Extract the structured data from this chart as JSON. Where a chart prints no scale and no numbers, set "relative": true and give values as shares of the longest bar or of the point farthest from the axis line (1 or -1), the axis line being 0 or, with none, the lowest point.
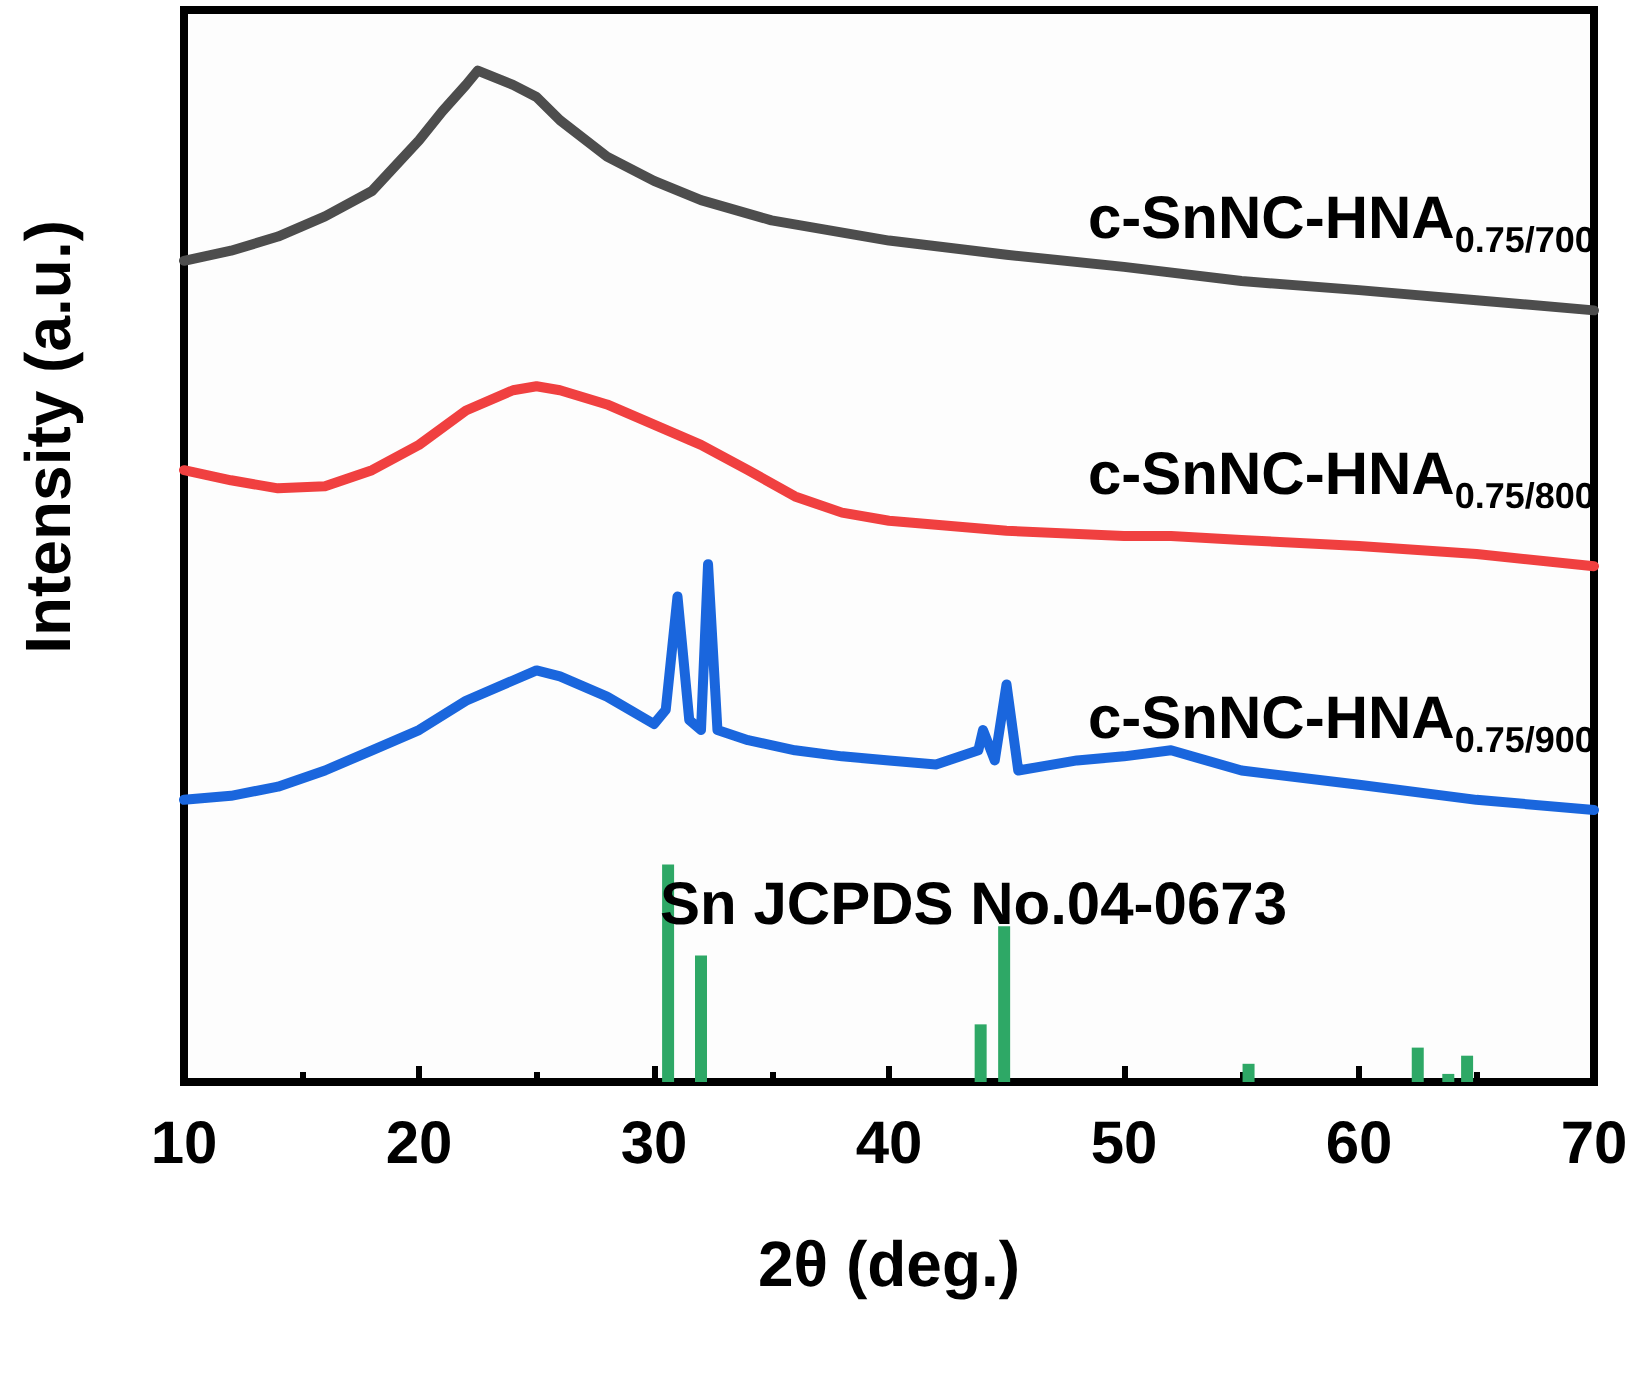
{
  "chart_data": {
    "type": "line",
    "relative": true,
    "xlabel": "2θ (deg.)",
    "ylabel": "Intensity (a.u.)",
    "xlim": [
      10,
      70
    ],
    "xticks": [
      10,
      20,
      30,
      40,
      50,
      60,
      70
    ],
    "tick_labels": "x",
    "grid": false,
    "legend": false,
    "marker": "none",
    "line_style": "solid",
    "series": [
      {
        "name": "c-SnNC-HNA$_{0.75/700}$",
        "color": "#4d4d4d",
        "x": [
          10,
          12,
          14,
          16,
          18,
          20,
          21,
          22,
          22.5,
          24,
          25,
          26,
          28,
          30,
          32,
          35,
          40,
          45,
          50,
          55,
          60,
          65,
          70
        ],
        "values": [
          0.812,
          0.822,
          0.836,
          0.856,
          0.881,
          0.931,
          0.96,
          0.986,
          1,
          0.986,
          0.974,
          0.951,
          0.915,
          0.891,
          0.872,
          0.852,
          0.832,
          0.818,
          0.806,
          0.792,
          0.783,
          0.773,
          0.763
        ]
      },
      {
        "name": "c-SnNC-HNA$_{0.75/800}$",
        "color": "#f04040",
        "x": [
          10,
          12,
          14,
          16,
          18,
          20,
          22,
          24,
          25,
          26,
          28,
          30,
          32,
          34,
          36,
          38,
          40,
          45,
          50,
          52,
          55,
          60,
          65,
          70
        ],
        "values": [
          0.605,
          0.595,
          0.587,
          0.589,
          0.605,
          0.63,
          0.664,
          0.684,
          0.688,
          0.684,
          0.67,
          0.65,
          0.63,
          0.605,
          0.579,
          0.563,
          0.555,
          0.545,
          0.54,
          0.54,
          0.536,
          0.53,
          0.522,
          0.51
        ]
      },
      {
        "name": "c-SnNC-HNA$_{0.75/900}$",
        "color": "#1a66dd",
        "x": [
          10,
          12,
          14,
          16,
          18,
          20,
          22,
          24,
          25,
          26,
          28,
          30,
          30.5,
          31,
          31.5,
          32,
          32.3,
          32.7,
          34,
          36,
          38,
          40,
          42,
          43.8,
          44,
          44.5,
          45,
          45.5,
          48,
          50,
          52,
          55,
          60,
          65,
          70
        ],
        "values": [
          0.279,
          0.283,
          0.292,
          0.308,
          0.328,
          0.348,
          0.377,
          0.397,
          0.407,
          0.401,
          0.381,
          0.354,
          0.368,
          0.48,
          0.358,
          0.348,
          0.512,
          0.348,
          0.338,
          0.328,
          0.322,
          0.318,
          0.314,
          0.328,
          0.348,
          0.318,
          0.393,
          0.308,
          0.318,
          0.322,
          0.328,
          0.308,
          0.294,
          0.279,
          0.269
        ]
      },
      {
        "name": "Sn JCPDS No.04-0673",
        "type": "bar",
        "color": "#2ea866",
        "x": [
          30.6,
          32.0,
          43.9,
          44.9,
          55.3,
          62.5,
          63.8,
          64.6
        ],
        "values": [
          0.215,
          0.125,
          0.057,
          0.154,
          0.018,
          0.034,
          0.008,
          0.026
        ]
      }
    ]
  }
}
